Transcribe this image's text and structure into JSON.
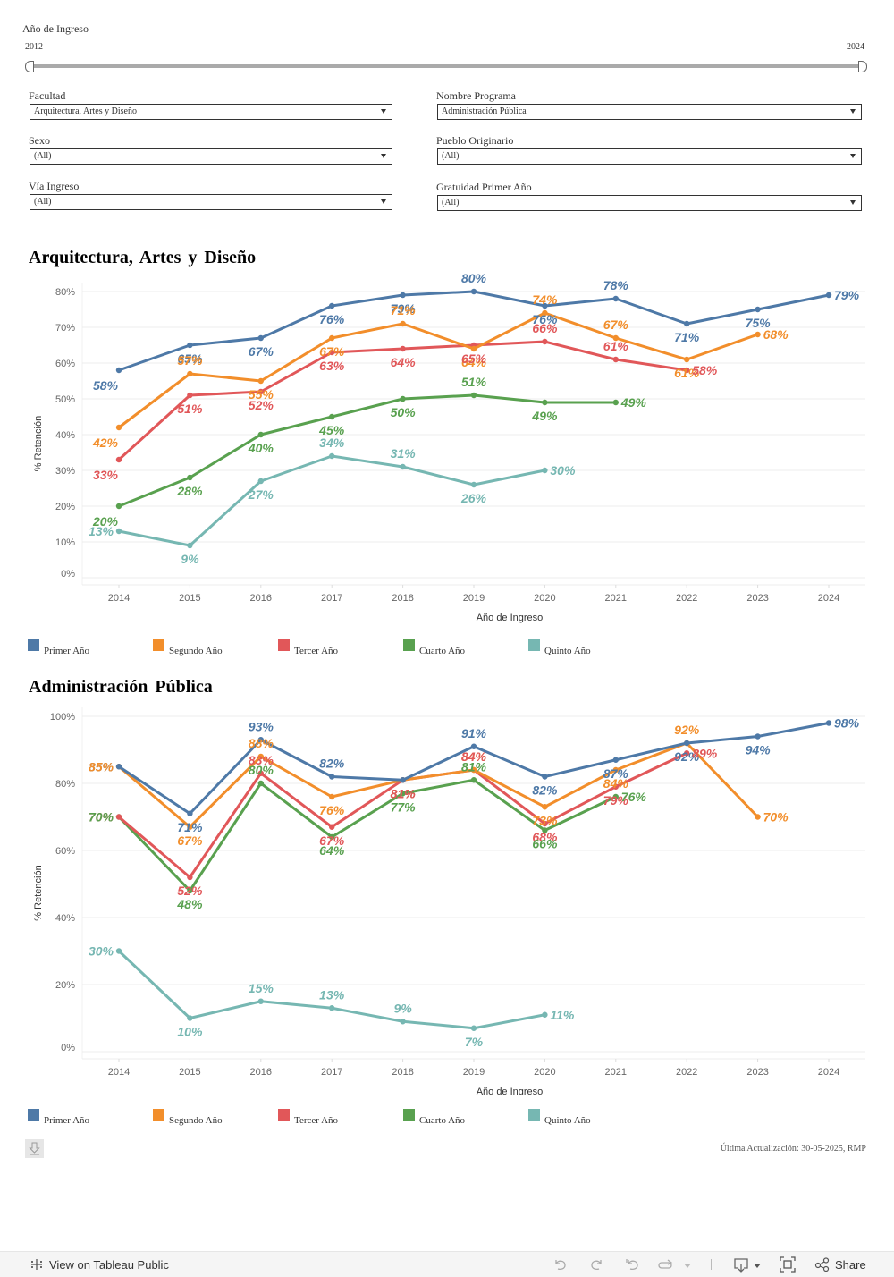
{
  "filters": {
    "year_slider": {
      "label": "Año de Ingreso",
      "min_label": "2012",
      "max_label": "2024"
    },
    "facultad": {
      "label": "Facultad",
      "value": "Arquitectura, Artes y Diseño"
    },
    "sexo": {
      "label": "Sexo",
      "value": "(All)"
    },
    "via_ingreso": {
      "label": "Vía Ingreso",
      "value": "(All)"
    },
    "nombre_programa": {
      "label": "Nombre Programa",
      "value": "Administración Pública"
    },
    "pueblo_originario": {
      "label": "Pueblo Originario",
      "value": "(All)"
    },
    "gratuidad": {
      "label": "Gratuidad Primer Año",
      "value": "(All)"
    }
  },
  "legend": {
    "items": [
      {
        "label": "Primer Año",
        "color": "#4e79a7"
      },
      {
        "label": "Segundo Año",
        "color": "#f28e2b"
      },
      {
        "label": "Tercer Año",
        "color": "#e15759"
      },
      {
        "label": "Cuarto Año",
        "color": "#59a14f"
      },
      {
        "label": "Quinto Año",
        "color": "#76b7b2"
      }
    ]
  },
  "chart_data": [
    {
      "type": "line",
      "title": "Arquitectura, Artes y Diseño",
      "xlabel": "Año de Ingreso",
      "ylabel": "% Retención",
      "x": [
        2014,
        2015,
        2016,
        2017,
        2018,
        2019,
        2020,
        2021,
        2022,
        2023,
        2024
      ],
      "x_tick_labels": [
        "2014",
        "2015",
        "2016",
        "2017",
        "2018",
        "2019",
        "2020",
        "2021",
        "2022",
        "2023",
        "2024"
      ],
      "y_ticks": [
        0,
        10,
        20,
        30,
        40,
        50,
        60,
        70,
        80
      ],
      "y_tick_labels": [
        "0%",
        "10%",
        "20%",
        "30%",
        "40%",
        "50%",
        "60%",
        "70%",
        "80%"
      ],
      "ylim": [
        0,
        80
      ],
      "grid": true,
      "legend": "bottom",
      "series": [
        {
          "name": "Primer Año",
          "color": "#4e79a7",
          "values": [
            58,
            65,
            67,
            76,
            79,
            80,
            76,
            78,
            71,
            75,
            79
          ]
        },
        {
          "name": "Segundo Año",
          "color": "#f28e2b",
          "values": [
            42,
            57,
            55,
            67,
            71,
            64,
            74,
            67,
            61,
            68,
            null
          ]
        },
        {
          "name": "Tercer Año",
          "color": "#e15759",
          "values": [
            33,
            51,
            52,
            63,
            64,
            65,
            66,
            61,
            58,
            null,
            null
          ]
        },
        {
          "name": "Cuarto Año",
          "color": "#59a14f",
          "values": [
            20,
            28,
            40,
            45,
            50,
            51,
            49,
            49,
            null,
            null,
            null
          ]
        },
        {
          "name": "Quinto Año",
          "color": "#76b7b2",
          "values": [
            13,
            9,
            27,
            34,
            31,
            26,
            30,
            null,
            null,
            null,
            null
          ]
        }
      ]
    },
    {
      "type": "line",
      "title": "Administración Pública",
      "xlabel": "Año de Ingreso",
      "ylabel": "% Retención",
      "x": [
        2014,
        2015,
        2016,
        2017,
        2018,
        2019,
        2020,
        2021,
        2022,
        2023,
        2024
      ],
      "x_tick_labels": [
        "2014",
        "2015",
        "2016",
        "2017",
        "2018",
        "2019",
        "2020",
        "2021",
        "2022",
        "2023",
        "2024"
      ],
      "y_ticks": [
        0,
        20,
        40,
        60,
        80,
        100
      ],
      "y_tick_labels": [
        "0%",
        "20%",
        "40%",
        "60%",
        "80%",
        "100%"
      ],
      "ylim": [
        0,
        100
      ],
      "grid": true,
      "legend": "bottom",
      "series": [
        {
          "name": "Primer Año",
          "color": "#4e79a7",
          "values": [
            85,
            71,
            93,
            82,
            81,
            91,
            82,
            87,
            92,
            94,
            98
          ]
        },
        {
          "name": "Segundo Año",
          "color": "#f28e2b",
          "values": [
            85,
            67,
            88,
            76,
            81,
            84,
            73,
            84,
            92,
            70,
            null
          ]
        },
        {
          "name": "Tercer Año",
          "color": "#e15759",
          "values": [
            70,
            52,
            83,
            67,
            81,
            84,
            68,
            79,
            89,
            null,
            null
          ]
        },
        {
          "name": "Cuarto Año",
          "color": "#59a14f",
          "values": [
            70,
            48,
            80,
            64,
            77,
            81,
            66,
            76,
            null,
            null,
            null
          ]
        },
        {
          "name": "Quinto Año",
          "color": "#76b7b2",
          "values": [
            30,
            10,
            15,
            13,
            9,
            7,
            11,
            null,
            null,
            null,
            null
          ]
        }
      ]
    }
  ],
  "footer": {
    "last_update": "Última Actualización: 30-05-2025, RMP",
    "download_icon": "download-icon"
  },
  "toolbar": {
    "view_on_label": "View on Tableau Public",
    "share_label": "Share",
    "icons": [
      "undo-icon",
      "redo-icon",
      "revert-icon",
      "refresh-icon",
      "download-icon",
      "fullscreen-icon",
      "share-icon"
    ]
  }
}
